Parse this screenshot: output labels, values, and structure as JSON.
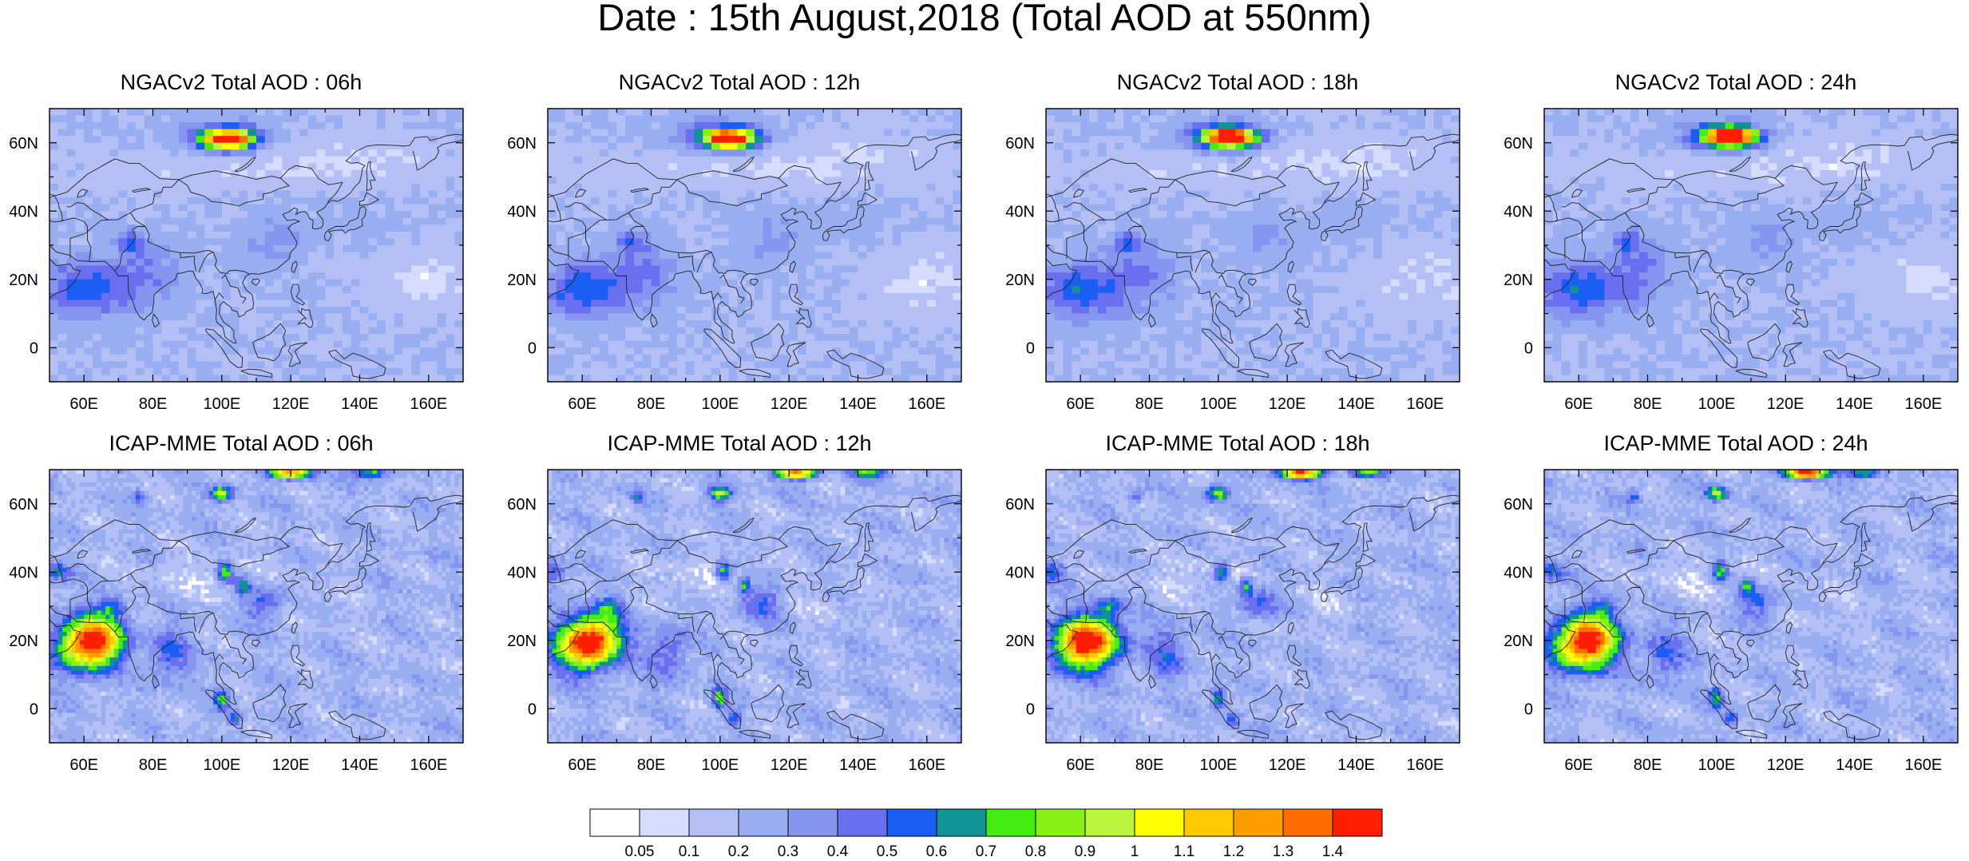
{
  "title": "Date : 15th August,2018 (Total AOD at 550nm)",
  "panels": [
    {
      "title": "NGACv2 Total AOD : 06h",
      "model": "ngac",
      "hour": 6
    },
    {
      "title": "NGACv2 Total AOD : 12h",
      "model": "ngac",
      "hour": 12
    },
    {
      "title": "NGACv2 Total AOD : 18h",
      "model": "ngac",
      "hour": 18
    },
    {
      "title": "NGACv2 Total AOD : 24h",
      "model": "ngac",
      "hour": 24
    },
    {
      "title": "ICAP-MME Total AOD : 06h",
      "model": "icap",
      "hour": 6
    },
    {
      "title": "ICAP-MME Total AOD : 12h",
      "model": "icap",
      "hour": 12
    },
    {
      "title": "ICAP-MME Total AOD : 18h",
      "model": "icap",
      "hour": 18
    },
    {
      "title": "ICAP-MME Total AOD : 24h",
      "model": "icap",
      "hour": 24
    }
  ],
  "lat_labels": [
    "60N",
    "40N",
    "20N",
    "0"
  ],
  "lon_labels": [
    "60E",
    "80E",
    "100E",
    "120E",
    "140E",
    "160E"
  ],
  "colorbar": {
    "labels": [
      "0.05",
      "0.1",
      "0.2",
      "0.3",
      "0.4",
      "0.5",
      "0.6",
      "0.7",
      "0.8",
      "0.9",
      "1",
      "1.1",
      "1.2",
      "1.3",
      "1.4"
    ],
    "colors": [
      "#ffffff",
      "#d6dcff",
      "#b4bff5",
      "#98aef0",
      "#8595f0",
      "#6a6ff0",
      "#1a5ef5",
      "#119393",
      "#44ee14",
      "#88f014",
      "#bcf53e",
      "#ffff00",
      "#ffc800",
      "#ff9e00",
      "#ff6e00",
      "#ff1e00"
    ]
  }
}
